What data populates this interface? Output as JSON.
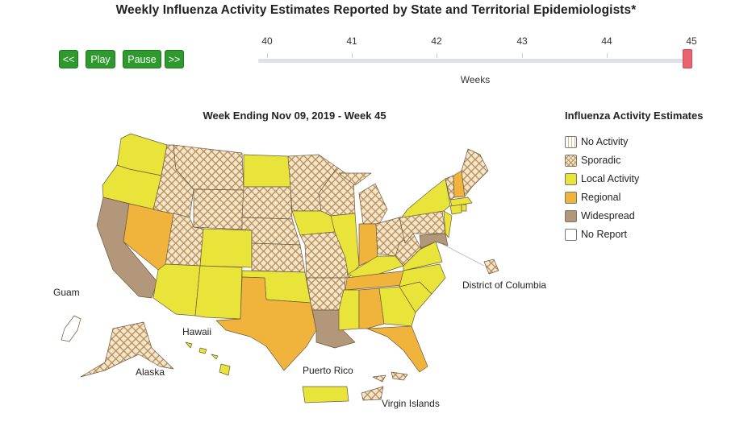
{
  "title": "Weekly Influenza Activity Estimates Reported by State and Territorial Epidemiologists*",
  "controls": {
    "prev": "<<",
    "play": "Play",
    "pause": "Pause",
    "next": ">>"
  },
  "slider": {
    "ticks": [
      "40",
      "41",
      "42",
      "43",
      "44",
      "45"
    ],
    "label": "Weeks",
    "selected_week": "45"
  },
  "map": {
    "week_label": "Week Ending Nov 09, 2019 - Week 45",
    "places": {
      "guam": "Guam",
      "hawaii": "Hawaii",
      "alaska": "Alaska",
      "puerto_rico": "Puerto Rico",
      "virgin_islands": "Virgin Islands",
      "dc": "District of Columbia"
    }
  },
  "legend": {
    "title": "Influenza Activity Estimates",
    "items": [
      {
        "label": "No Activity",
        "color": "#ffffff",
        "pattern": "stripes"
      },
      {
        "label": "Sporadic",
        "color": "#c49a5c",
        "pattern": "crosshatch"
      },
      {
        "label": "Local Activity",
        "color": "#e8e43a"
      },
      {
        "label": "Regional",
        "color": "#f0b43c"
      },
      {
        "label": "Widespread",
        "color": "#b2977a"
      },
      {
        "label": "No Report",
        "color": "#ffffff"
      }
    ]
  }
}
